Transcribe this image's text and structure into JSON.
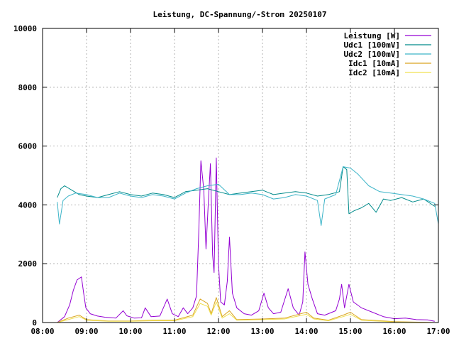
{
  "chart_data": {
    "type": "line",
    "title": "Leistung, DC-Spannung/-Strom 20250107",
    "xlabel": "",
    "ylabel": "",
    "x_axis_type": "time",
    "xlim": [
      "08:00",
      "17:00"
    ],
    "ylim": [
      0,
      10000
    ],
    "grid": true,
    "legend_position": "top-right",
    "x_ticks": [
      "08:00",
      "09:00",
      "10:00",
      "11:00",
      "12:00",
      "13:00",
      "14:00",
      "15:00",
      "16:00",
      "17:00"
    ],
    "y_ticks": [
      0,
      2000,
      4000,
      6000,
      8000,
      10000
    ],
    "series": [
      {
        "name": "Leistung [W]",
        "color": "#9400d3",
        "points": [
          [
            "08:20",
            0
          ],
          [
            "08:30",
            200
          ],
          [
            "08:37",
            600
          ],
          [
            "08:42",
            1100
          ],
          [
            "08:47",
            1450
          ],
          [
            "08:53",
            1550
          ],
          [
            "08:56",
            1000
          ],
          [
            "08:59",
            500
          ],
          [
            "09:05",
            300
          ],
          [
            "09:15",
            220
          ],
          [
            "09:25",
            180
          ],
          [
            "09:40",
            150
          ],
          [
            "09:50",
            400
          ],
          [
            "09:55",
            230
          ],
          [
            "10:05",
            150
          ],
          [
            "10:15",
            160
          ],
          [
            "10:20",
            500
          ],
          [
            "10:28",
            200
          ],
          [
            "10:40",
            220
          ],
          [
            "10:50",
            800
          ],
          [
            "10:57",
            300
          ],
          [
            "11:05",
            200
          ],
          [
            "11:12",
            500
          ],
          [
            "11:18",
            300
          ],
          [
            "11:25",
            500
          ],
          [
            "11:30",
            900
          ],
          [
            "11:33",
            3000
          ],
          [
            "11:36",
            5500
          ],
          [
            "11:40",
            4500
          ],
          [
            "11:43",
            2500
          ],
          [
            "11:46",
            4000
          ],
          [
            "11:49",
            5400
          ],
          [
            "11:52",
            2300
          ],
          [
            "11:54",
            1700
          ],
          [
            "11:57",
            5600
          ],
          [
            "12:00",
            2000
          ],
          [
            "12:03",
            700
          ],
          [
            "12:08",
            600
          ],
          [
            "12:12",
            1400
          ],
          [
            "12:15",
            2900
          ],
          [
            "12:19",
            1000
          ],
          [
            "12:25",
            500
          ],
          [
            "12:35",
            300
          ],
          [
            "12:45",
            250
          ],
          [
            "12:55",
            400
          ],
          [
            "13:02",
            1000
          ],
          [
            "13:08",
            500
          ],
          [
            "13:15",
            300
          ],
          [
            "13:25",
            350
          ],
          [
            "13:35",
            1150
          ],
          [
            "13:42",
            500
          ],
          [
            "13:50",
            250
          ],
          [
            "13:55",
            700
          ],
          [
            "13:58",
            2400
          ],
          [
            "14:02",
            1300
          ],
          [
            "14:08",
            800
          ],
          [
            "14:15",
            300
          ],
          [
            "14:25",
            250
          ],
          [
            "14:40",
            400
          ],
          [
            "14:45",
            800
          ],
          [
            "14:48",
            1300
          ],
          [
            "14:52",
            500
          ],
          [
            "14:55",
            900
          ],
          [
            "14:58",
            1300
          ],
          [
            "15:04",
            700
          ],
          [
            "15:15",
            500
          ],
          [
            "15:30",
            350
          ],
          [
            "15:45",
            200
          ],
          [
            "16:00",
            130
          ],
          [
            "16:15",
            150
          ],
          [
            "16:30",
            100
          ],
          [
            "16:45",
            90
          ],
          [
            "16:55",
            40
          ]
        ]
      },
      {
        "name": "Udc1 [100mV]",
        "color": "#008b8b",
        "points": [
          [
            "08:20",
            4250
          ],
          [
            "08:25",
            4550
          ],
          [
            "08:30",
            4650
          ],
          [
            "08:40",
            4500
          ],
          [
            "08:50",
            4350
          ],
          [
            "09:00",
            4300
          ],
          [
            "09:15",
            4250
          ],
          [
            "09:30",
            4350
          ],
          [
            "09:45",
            4450
          ],
          [
            "10:00",
            4350
          ],
          [
            "10:15",
            4300
          ],
          [
            "10:30",
            4400
          ],
          [
            "10:45",
            4350
          ],
          [
            "11:00",
            4250
          ],
          [
            "11:15",
            4450
          ],
          [
            "11:30",
            4500
          ],
          [
            "11:45",
            4550
          ],
          [
            "12:00",
            4450
          ],
          [
            "12:15",
            4350
          ],
          [
            "12:30",
            4400
          ],
          [
            "12:45",
            4450
          ],
          [
            "13:00",
            4500
          ],
          [
            "13:15",
            4350
          ],
          [
            "13:30",
            4400
          ],
          [
            "13:45",
            4450
          ],
          [
            "14:00",
            4400
          ],
          [
            "14:15",
            4300
          ],
          [
            "14:30",
            4350
          ],
          [
            "14:45",
            4450
          ],
          [
            "14:50",
            5300
          ],
          [
            "14:55",
            5200
          ],
          [
            "14:58",
            3700
          ],
          [
            "15:05",
            3800
          ],
          [
            "15:15",
            3900
          ],
          [
            "15:25",
            4050
          ],
          [
            "15:35",
            3750
          ],
          [
            "15:45",
            4200
          ],
          [
            "15:55",
            4150
          ],
          [
            "16:10",
            4250
          ],
          [
            "16:25",
            4100
          ],
          [
            "16:40",
            4200
          ],
          [
            "16:55",
            3950
          ]
        ]
      },
      {
        "name": "Udc2 [100mV]",
        "color": "#3cb4c8",
        "points": [
          [
            "08:20",
            4100
          ],
          [
            "08:23",
            3350
          ],
          [
            "08:28",
            4150
          ],
          [
            "08:35",
            4300
          ],
          [
            "08:45",
            4400
          ],
          [
            "09:00",
            4350
          ],
          [
            "09:15",
            4250
          ],
          [
            "09:30",
            4250
          ],
          [
            "09:45",
            4400
          ],
          [
            "10:00",
            4300
          ],
          [
            "10:15",
            4250
          ],
          [
            "10:30",
            4350
          ],
          [
            "10:45",
            4300
          ],
          [
            "11:00",
            4200
          ],
          [
            "11:15",
            4400
          ],
          [
            "11:30",
            4550
          ],
          [
            "11:45",
            4650
          ],
          [
            "12:00",
            4700
          ],
          [
            "12:15",
            4350
          ],
          [
            "12:30",
            4350
          ],
          [
            "12:45",
            4400
          ],
          [
            "13:00",
            4350
          ],
          [
            "13:15",
            4200
          ],
          [
            "13:30",
            4250
          ],
          [
            "13:45",
            4350
          ],
          [
            "14:00",
            4300
          ],
          [
            "14:15",
            4150
          ],
          [
            "14:20",
            3300
          ],
          [
            "14:25",
            4200
          ],
          [
            "14:40",
            4350
          ],
          [
            "14:50",
            5300
          ],
          [
            "15:00",
            5250
          ],
          [
            "15:10",
            5050
          ],
          [
            "15:25",
            4650
          ],
          [
            "15:40",
            4450
          ],
          [
            "15:55",
            4400
          ],
          [
            "16:10",
            4350
          ],
          [
            "16:25",
            4300
          ],
          [
            "16:40",
            4200
          ],
          [
            "16:55",
            4050
          ],
          [
            "17:00",
            3350
          ]
        ]
      },
      {
        "name": "Idc1 [10mA]",
        "color": "#daa520",
        "points": [
          [
            "08:20",
            0
          ],
          [
            "08:35",
            150
          ],
          [
            "08:50",
            250
          ],
          [
            "09:00",
            100
          ],
          [
            "09:30",
            50
          ],
          [
            "10:00",
            50
          ],
          [
            "10:30",
            80
          ],
          [
            "11:00",
            80
          ],
          [
            "11:25",
            250
          ],
          [
            "11:35",
            800
          ],
          [
            "11:45",
            650
          ],
          [
            "11:50",
            300
          ],
          [
            "11:57",
            850
          ],
          [
            "12:05",
            200
          ],
          [
            "12:15",
            400
          ],
          [
            "12:25",
            100
          ],
          [
            "13:00",
            120
          ],
          [
            "13:30",
            150
          ],
          [
            "14:00",
            350
          ],
          [
            "14:10",
            150
          ],
          [
            "14:30",
            80
          ],
          [
            "14:50",
            250
          ],
          [
            "15:00",
            350
          ],
          [
            "15:15",
            100
          ],
          [
            "16:00",
            30
          ],
          [
            "16:55",
            0
          ]
        ]
      },
      {
        "name": "Idc2 [10mA]",
        "color": "#f0e050",
        "points": [
          [
            "08:20",
            0
          ],
          [
            "08:35",
            100
          ],
          [
            "08:50",
            200
          ],
          [
            "09:00",
            80
          ],
          [
            "09:30",
            40
          ],
          [
            "10:00",
            40
          ],
          [
            "10:30",
            60
          ],
          [
            "11:00",
            60
          ],
          [
            "11:25",
            200
          ],
          [
            "11:35",
            650
          ],
          [
            "11:45",
            550
          ],
          [
            "11:50",
            250
          ],
          [
            "11:57",
            700
          ],
          [
            "12:05",
            150
          ],
          [
            "12:15",
            300
          ],
          [
            "12:25",
            80
          ],
          [
            "13:00",
            100
          ],
          [
            "13:30",
            120
          ],
          [
            "14:00",
            280
          ],
          [
            "14:10",
            120
          ],
          [
            "14:30",
            60
          ],
          [
            "14:50",
            200
          ],
          [
            "15:00",
            280
          ],
          [
            "15:15",
            80
          ],
          [
            "16:00",
            20
          ],
          [
            "16:55",
            0
          ]
        ]
      }
    ]
  }
}
